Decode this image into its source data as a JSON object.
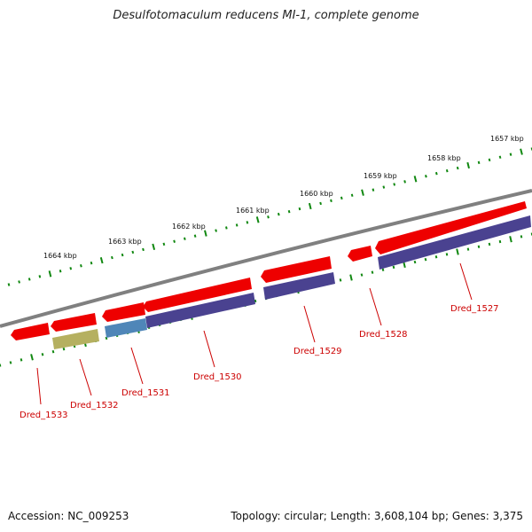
{
  "title": "Desulfotomaculum reducens MI-1, complete genome",
  "footer": {
    "accession": "Accession: NC_009253",
    "topology": "Topology: circular; Length: 3,608,104 bp; Genes: 3,375"
  },
  "colors": {
    "backbone": "#808080",
    "tick": "#118811",
    "forward_gene": "#ee0000",
    "reverse_gene": "#4a4290",
    "olive_gene": "#b5b060",
    "blue_gene": "#4f86b8",
    "label": "#cc0000"
  },
  "kbp_labels": [
    "1657 kbp",
    "1658 kbp",
    "1659 kbp",
    "1660 kbp",
    "1661 kbp",
    "1662 kbp",
    "1663 kbp",
    "1664 kbp"
  ],
  "genes": [
    {
      "label": "Dred_1527"
    },
    {
      "label": "Dred_1528"
    },
    {
      "label": "Dred_1529"
    },
    {
      "label": "Dred_1530"
    },
    {
      "label": "Dred_1531"
    },
    {
      "label": "Dred_1532"
    },
    {
      "label": "Dred_1533"
    }
  ]
}
